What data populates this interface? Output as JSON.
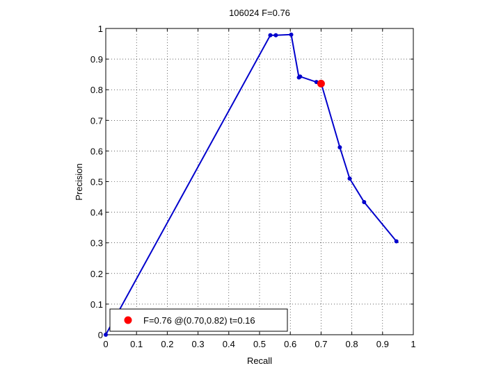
{
  "chart_data": {
    "type": "line",
    "title": "106024 F=0.76",
    "xlabel": "Recall",
    "ylabel": "Precision",
    "xlim": [
      0,
      1
    ],
    "ylim": [
      0,
      1
    ],
    "xticks": [
      "0",
      "0.1",
      "0.2",
      "0.3",
      "0.4",
      "0.5",
      "0.6",
      "0.7",
      "0.8",
      "0.9",
      "1"
    ],
    "yticks": [
      "0",
      "0.1",
      "0.2",
      "0.3",
      "0.4",
      "0.5",
      "0.6",
      "0.7",
      "0.8",
      "0.9",
      "1"
    ],
    "grid": true,
    "line_color": "#0000cc",
    "marker_color": "#ff0000",
    "series": [
      {
        "x": [
          0.0,
          0.535,
          0.553,
          0.603,
          0.628,
          0.632,
          0.685,
          0.7,
          0.761,
          0.793,
          0.84,
          0.945
        ],
        "y": [
          0.0,
          0.978,
          0.978,
          0.98,
          0.84,
          0.843,
          0.825,
          0.822,
          0.612,
          0.51,
          0.433,
          0.305
        ]
      }
    ],
    "best_point": {
      "x": 0.7,
      "y": 0.82
    },
    "legend": {
      "label": "F=0.76 @(0.70,0.82) t=0.16",
      "position": "bottom-left"
    }
  }
}
